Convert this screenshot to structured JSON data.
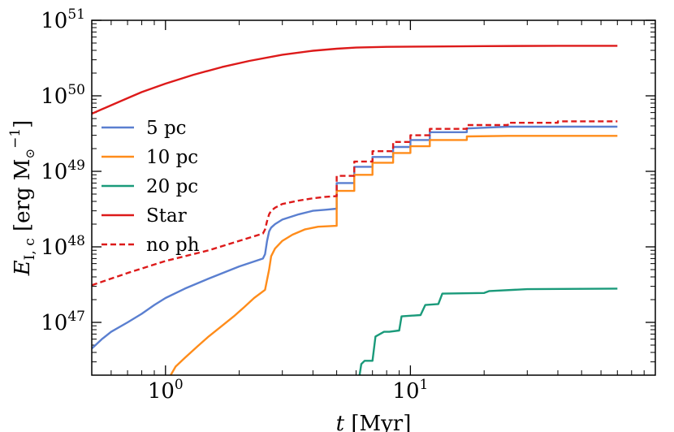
{
  "chart_data": {
    "type": "line",
    "xscale": "log",
    "yscale": "log",
    "xlim": [
      0.5,
      100
    ],
    "ylim": [
      2e+46,
      1e+51
    ],
    "xlabel": {
      "var": "t",
      "unit": "[Myr]"
    },
    "ylabel": {
      "var": "E",
      "sub": "I, c",
      "unit_pre": "[erg M",
      "unit_sun": "⊙",
      "unit_exp": "−1",
      "unit_post": "]"
    },
    "xticks": [
      {
        "value": 1,
        "base": "10",
        "exp": "0"
      },
      {
        "value": 10,
        "base": "10",
        "exp": "1"
      }
    ],
    "yticks": [
      {
        "value": 1e+47,
        "base": "10",
        "exp": "47"
      },
      {
        "value": 1e+48,
        "base": "10",
        "exp": "48"
      },
      {
        "value": 1e+49,
        "base": "10",
        "exp": "49"
      },
      {
        "value": 1e+50,
        "base": "10",
        "exp": "50"
      },
      {
        "value": 1e+51,
        "base": "10",
        "exp": "51"
      }
    ],
    "legend_position": "center-left",
    "series": [
      {
        "name": "5 pc",
        "color": "#5a7fd0",
        "dash": "solid",
        "x": [
          0.5,
          0.55,
          0.6,
          0.7,
          0.8,
          0.9,
          1.0,
          1.2,
          1.5,
          2.0,
          2.5,
          2.55,
          2.6,
          2.65,
          2.7,
          2.8,
          3.0,
          3.5,
          4.0,
          4.5,
          5.0,
          5.0,
          5.9,
          5.9,
          7.0,
          7.0,
          8.5,
          8.5,
          10.0,
          10.0,
          12.0,
          12.0,
          17.0,
          17.0,
          25.0,
          40.0,
          70.0
        ],
        "y": [
          4.5e+46,
          6e+46,
          7.5e+46,
          1e+47,
          1.3e+47,
          1.7e+47,
          2.1e+47,
          2.8e+47,
          3.8e+47,
          5.5e+47,
          7e+47,
          8e+47,
          1.2e+48,
          1.6e+48,
          1.8e+48,
          2e+48,
          2.3e+48,
          2.7e+48,
          3e+48,
          3.1e+48,
          3.2e+48,
          7e+48,
          7e+48,
          1.15e+49,
          1.15e+49,
          1.55e+49,
          1.55e+49,
          2.1e+49,
          2.1e+49,
          2.6e+49,
          2.6e+49,
          3.3e+49,
          3.3e+49,
          3.7e+49,
          3.9e+49,
          3.9e+49,
          3.9e+49
        ]
      },
      {
        "name": "10 pc",
        "color": "#ff8c1a",
        "dash": "solid",
        "x": [
          1.05,
          1.1,
          1.2,
          1.35,
          1.5,
          1.7,
          1.9,
          2.1,
          2.3,
          2.55,
          2.65,
          2.7,
          2.8,
          3.0,
          3.3,
          3.7,
          4.2,
          5.0,
          5.0,
          5.9,
          5.9,
          7.0,
          7.0,
          8.5,
          8.5,
          10.0,
          10.0,
          12.0,
          12.0,
          17.0,
          17.0,
          25.0,
          40.0,
          70.0
        ],
        "y": [
          2e+46,
          2.6e+46,
          3.4e+46,
          4.8e+46,
          6.5e+46,
          9e+46,
          1.2e+47,
          1.6e+47,
          2.1e+47,
          2.7e+47,
          5e+47,
          7.5e+47,
          9.5e+47,
          1.2e+48,
          1.45e+48,
          1.7e+48,
          1.85e+48,
          1.9e+48,
          5.5e+48,
          5.5e+48,
          9e+48,
          9e+48,
          1.3e+49,
          1.3e+49,
          1.75e+49,
          1.75e+49,
          2.15e+49,
          2.15e+49,
          2.6e+49,
          2.6e+49,
          2.9e+49,
          2.95e+49,
          2.95e+49,
          2.95e+49
        ]
      },
      {
        "name": "20 pc",
        "color": "#1a9a7a",
        "dash": "solid",
        "x": [
          6.2,
          6.3,
          6.5,
          6.7,
          7.0,
          7.2,
          7.8,
          8.2,
          9.0,
          9.2,
          11.0,
          11.5,
          13.0,
          13.5,
          20.0,
          21.0,
          30.0,
          70.0
        ],
        "y": [
          2e+46,
          2.8e+46,
          3.1e+46,
          3.1e+46,
          3.1e+46,
          6.5e+46,
          7.5e+46,
          7.5e+46,
          7.8e+46,
          1.2e+47,
          1.25e+47,
          1.7e+47,
          1.75e+47,
          2.4e+47,
          2.45e+47,
          2.6e+47,
          2.75e+47,
          2.8e+47
        ]
      },
      {
        "name": "Star",
        "color": "#dd1a1a",
        "dash": "solid",
        "x": [
          0.5,
          0.6,
          0.7,
          0.8,
          1.0,
          1.3,
          1.7,
          2.2,
          3.0,
          4.0,
          5.0,
          6.0,
          8.0,
          12.0,
          20.0,
          40.0,
          70.0
        ],
        "y": [
          5.8e+49,
          7.5e+49,
          9.3e+49,
          1.12e+50,
          1.45e+50,
          1.9e+50,
          2.4e+50,
          2.9e+50,
          3.5e+50,
          3.95e+50,
          4.2e+50,
          4.35e+50,
          4.45e+50,
          4.5e+50,
          4.55e+50,
          4.6e+50,
          4.6e+50
        ]
      },
      {
        "name": "no ph",
        "color": "#dd1a1a",
        "dash": "dashed",
        "x": [
          0.5,
          0.7,
          1.0,
          1.5,
          2.0,
          2.5,
          2.55,
          2.6,
          2.65,
          2.7,
          2.8,
          3.0,
          3.5,
          4.0,
          4.5,
          5.0,
          5.0,
          5.9,
          5.9,
          7.0,
          7.0,
          8.5,
          8.5,
          10.0,
          10.0,
          12.0,
          12.0,
          17.0,
          17.0,
          25.0,
          25.0,
          40.0,
          40.0,
          70.0
        ],
        "y": [
          3.1e+47,
          4.5e+47,
          6.5e+47,
          9e+47,
          1.2e+48,
          1.5e+48,
          1.7e+48,
          2.2e+48,
          2.7e+48,
          3e+48,
          3.3e+48,
          3.7e+48,
          4.1e+48,
          4.4e+48,
          4.6e+48,
          4.7e+48,
          8.7e+48,
          8.7e+48,
          1.35e+49,
          1.35e+49,
          1.85e+49,
          1.85e+49,
          2.45e+49,
          2.45e+49,
          3e+49,
          3e+49,
          3.65e+49,
          3.65e+49,
          4.1e+49,
          4.1e+49,
          4.4e+49,
          4.4e+49,
          4.6e+49,
          4.6e+49
        ]
      }
    ]
  }
}
